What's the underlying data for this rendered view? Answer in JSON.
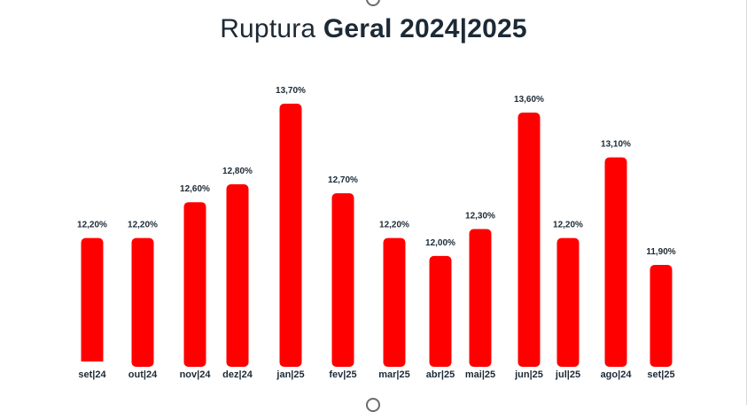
{
  "title": {
    "light": "Ruptura",
    "bold": "Geral 2024|2025"
  },
  "colors": {
    "bar": "#ff0000",
    "text": "#1c2a36"
  },
  "chart_data": {
    "type": "bar",
    "title": "Ruptura Geral 2024|2025",
    "xlabel": "",
    "ylabel": "",
    "categories": [
      "set|24",
      "out|24",
      "nov|24",
      "dez|24",
      "jan|25",
      "fev|25",
      "mar|25",
      "abr|25",
      "mai|25",
      "jun|25",
      "jul|25",
      "ago|24",
      "set|25"
    ],
    "values": [
      12.2,
      12.2,
      12.6,
      12.8,
      13.7,
      12.7,
      12.2,
      12.0,
      12.3,
      13.6,
      12.2,
      13.1,
      11.9
    ],
    "value_labels": [
      "12,20%",
      "12,20%",
      "12,60%",
      "12,80%",
      "13,70%",
      "12,70%",
      "12,20%",
      "12,00%",
      "12,30%",
      "13,60%",
      "12,20%",
      "13,10%",
      "11,90%"
    ],
    "grid": false,
    "legend": "none"
  }
}
